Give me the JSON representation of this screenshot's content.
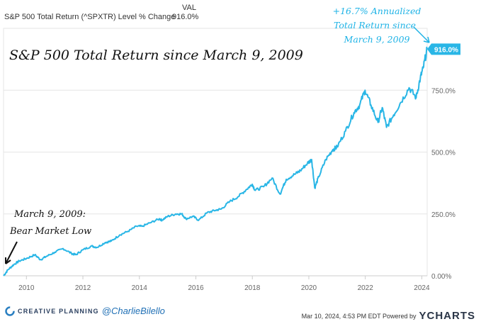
{
  "header": {
    "series_label": "S&P 500 Total Return (^SPXTR) Level % Change",
    "val_label": "VAL",
    "val_value": "916.0%"
  },
  "colors": {
    "line": "#29b6e6",
    "grid": "#e6e6e6",
    "axis_text": "#666666",
    "annotation": "#1fb3e6"
  },
  "chart_data": {
    "type": "line",
    "title": "S&P 500 Total Return since March 9, 2009",
    "xlabel": "",
    "ylabel": "",
    "xlim": [
      2009.19,
      2024.19
    ],
    "ylim": [
      0,
      1000
    ],
    "x_ticks": [
      "2010",
      "2012",
      "2014",
      "2016",
      "2018",
      "2020",
      "2022",
      "2024"
    ],
    "y_ticks": [
      "0.00%",
      "250.0%",
      "500.0%",
      "750.0%"
    ],
    "end_label": "916.0%",
    "series": [
      {
        "name": "S&P 500 Total Return (^SPXTR) Level % Change",
        "x": [
          2009.19,
          2009.35,
          2009.55,
          2009.75,
          2010.0,
          2010.3,
          2010.5,
          2010.7,
          2011.0,
          2011.3,
          2011.6,
          2011.75,
          2012.0,
          2012.3,
          2012.5,
          2012.8,
          2013.0,
          2013.3,
          2013.6,
          2013.9,
          2014.1,
          2014.4,
          2014.7,
          2014.8,
          2015.0,
          2015.3,
          2015.5,
          2015.65,
          2015.9,
          2016.1,
          2016.4,
          2016.7,
          2016.9,
          2017.2,
          2017.5,
          2017.8,
          2018.0,
          2018.1,
          2018.4,
          2018.7,
          2018.98,
          2019.2,
          2019.5,
          2019.7,
          2019.95,
          2020.1,
          2020.21,
          2020.35,
          2020.6,
          2020.85,
          2021.0,
          2021.3,
          2021.6,
          2021.8,
          2021.99,
          2022.2,
          2022.45,
          2022.6,
          2022.75,
          2023.0,
          2023.25,
          2023.55,
          2023.8,
          2023.95,
          2024.05,
          2024.19
        ],
        "values": [
          0,
          25,
          45,
          60,
          70,
          85,
          65,
          78,
          95,
          110,
          90,
          85,
          105,
          120,
          115,
          135,
          140,
          165,
          180,
          200,
          200,
          215,
          230,
          225,
          240,
          250,
          250,
          230,
          240,
          225,
          255,
          265,
          270,
          300,
          320,
          350,
          370,
          345,
          360,
          395,
          330,
          390,
          410,
          425,
          455,
          470,
          355,
          400,
          470,
          510,
          520,
          585,
          660,
          690,
          750,
          690,
          620,
          680,
          600,
          650,
          700,
          760,
          720,
          800,
          840,
          916
        ]
      }
    ],
    "annotations": [
      {
        "text_lines": [
          "March 9, 2009:",
          "Bear Market Low"
        ],
        "at": "start"
      },
      {
        "text_lines": [
          "+16.7% Annualized",
          "Total Return since",
          "March 9, 2009"
        ],
        "at": "end"
      }
    ]
  },
  "footer": {
    "brand": "CREATIVE PLANNING",
    "handle": "@CharlieBilello",
    "timestamp": "Mar 10, 2024, 4:53 PM EDT Powered by",
    "powered_logo": "YCHARTS"
  }
}
